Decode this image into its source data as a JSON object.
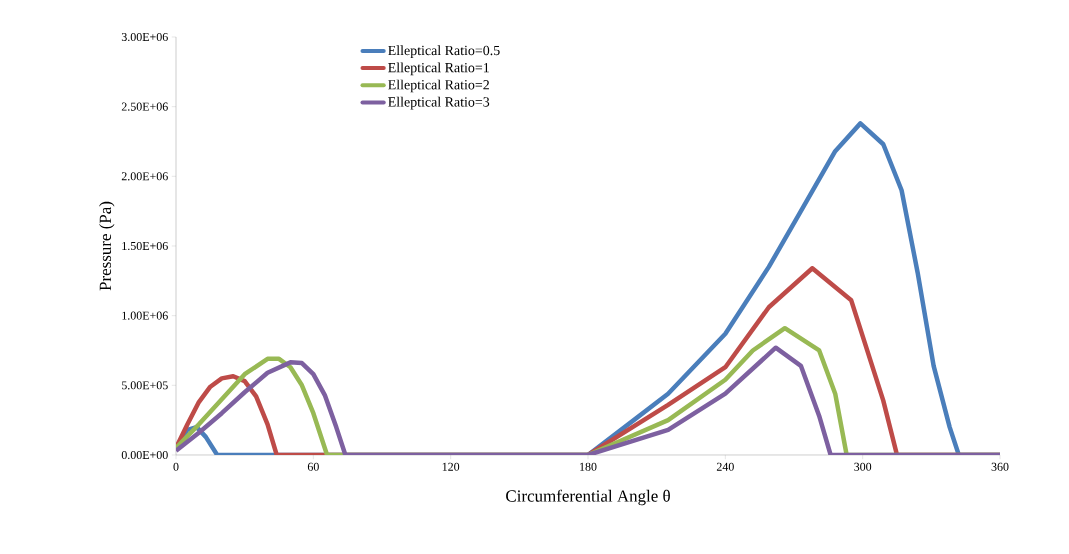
{
  "chart_data": {
    "type": "line",
    "xlabel": "Circumferential Angle θ",
    "ylabel": "Pressure (Pa)",
    "xlim": [
      0,
      360
    ],
    "xticks": [
      0,
      60,
      120,
      180,
      240,
      300,
      360
    ],
    "ylim": [
      0,
      3000000
    ],
    "yticks": [
      {
        "value": 0,
        "label": "0.00E+00"
      },
      {
        "value": 500000,
        "label": "5.00E+05"
      },
      {
        "value": 1000000,
        "label": "1.00E+06"
      },
      {
        "value": 1500000,
        "label": "1.50E+06"
      },
      {
        "value": 2000000,
        "label": "2.00E+06"
      },
      {
        "value": 2500000,
        "label": "2.50E+06"
      },
      {
        "value": 3000000,
        "label": "3.00E+06"
      }
    ],
    "grid": false,
    "legend": "top",
    "marker": "none",
    "line_style": "solid",
    "series": [
      {
        "name": "Elleptical Ratio=0.5",
        "color": "#4a7ebb",
        "x": [
          0,
          5,
          9,
          13,
          18,
          180,
          200,
          215,
          240,
          259,
          273,
          288,
          299,
          309,
          317,
          324,
          331,
          338,
          342,
          360
        ],
        "values": [
          50000,
          180000,
          200000,
          130000,
          0,
          0,
          250000,
          440000,
          870000,
          1350000,
          1750000,
          2180000,
          2380000,
          2230000,
          1900000,
          1310000,
          640000,
          200000,
          0,
          0
        ]
      },
      {
        "name": "Elleptical Ratio=1",
        "color": "#be4b48",
        "x": [
          0,
          5,
          10,
          15,
          20,
          25,
          30,
          35,
          40,
          44,
          180,
          215,
          240,
          259,
          278,
          295,
          302,
          309,
          315,
          360
        ],
        "values": [
          50000,
          220000,
          380000,
          490000,
          550000,
          565000,
          530000,
          420000,
          220000,
          0,
          0,
          360000,
          630000,
          1060000,
          1340000,
          1110000,
          750000,
          390000,
          0,
          0
        ]
      },
      {
        "name": "Elleptical Ratio=2",
        "color": "#98b954",
        "x": [
          0,
          10,
          20,
          30,
          40,
          45,
          50,
          55,
          60,
          66,
          180,
          215,
          240,
          252,
          266,
          281,
          288,
          293,
          360
        ],
        "values": [
          50000,
          220000,
          400000,
          580000,
          690000,
          690000,
          630000,
          500000,
          300000,
          0,
          0,
          250000,
          540000,
          750000,
          910000,
          750000,
          440000,
          0,
          0
        ]
      },
      {
        "name": "Elleptical Ratio=3",
        "color": "#7d60a0",
        "x": [
          0,
          10,
          20,
          30,
          40,
          50,
          55,
          60,
          65,
          70,
          74,
          180,
          215,
          240,
          262,
          273,
          281,
          286,
          360
        ],
        "values": [
          30000,
          160000,
          300000,
          450000,
          590000,
          665000,
          660000,
          580000,
          430000,
          200000,
          0,
          0,
          180000,
          440000,
          770000,
          640000,
          280000,
          0,
          0
        ]
      }
    ]
  }
}
